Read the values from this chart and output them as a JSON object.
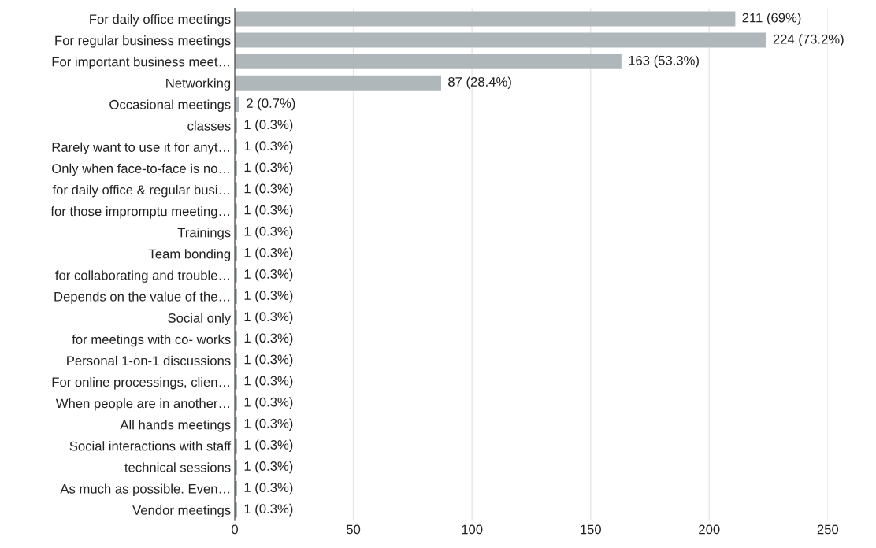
{
  "chart_data": {
    "type": "bar",
    "orientation": "horizontal",
    "categories": [
      "For daily office meetings",
      "For regular business meetings",
      "For important business meet…",
      "Networking",
      "Occasional meetings",
      "classes",
      "Rarely want to use it for anyt…",
      "Only when face-to-face is no…",
      "for daily office & regular busi…",
      "for those impromptu meeting…",
      "Trainings",
      "Team bonding",
      "for collaborating and trouble…",
      "Depends on the value of the…",
      "Social only",
      "for meetings with co- works",
      "Personal 1-on-1 discussions",
      "For online processings, clien…",
      "When people are in another…",
      "All hands meetings",
      "Social interactions with staff",
      "technical sessions",
      "As much as possible. Even…",
      "Vendor meetings"
    ],
    "values": [
      211,
      224,
      163,
      87,
      2,
      1,
      1,
      1,
      1,
      1,
      1,
      1,
      1,
      1,
      1,
      1,
      1,
      1,
      1,
      1,
      1,
      1,
      1,
      1
    ],
    "value_labels": [
      "211 (69%)",
      "224 (73.2%)",
      "163 (53.3%)",
      "87 (28.4%)",
      "2 (0.7%)",
      "1 (0.3%)",
      "1 (0.3%)",
      "1 (0.3%)",
      "1 (0.3%)",
      "1 (0.3%)",
      "1 (0.3%)",
      "1 (0.3%)",
      "1 (0.3%)",
      "1 (0.3%)",
      "1 (0.3%)",
      "1 (0.3%)",
      "1 (0.3%)",
      "1 (0.3%)",
      "1 (0.3%)",
      "1 (0.3%)",
      "1 (0.3%)",
      "1 (0.3%)",
      "1 (0.3%)",
      "1 (0.3%)"
    ],
    "color": "#b0b7bb",
    "xlim": [
      0,
      250
    ],
    "xticks": [
      0,
      50,
      100,
      150,
      200,
      250
    ],
    "grid": "x",
    "legend": false
  }
}
